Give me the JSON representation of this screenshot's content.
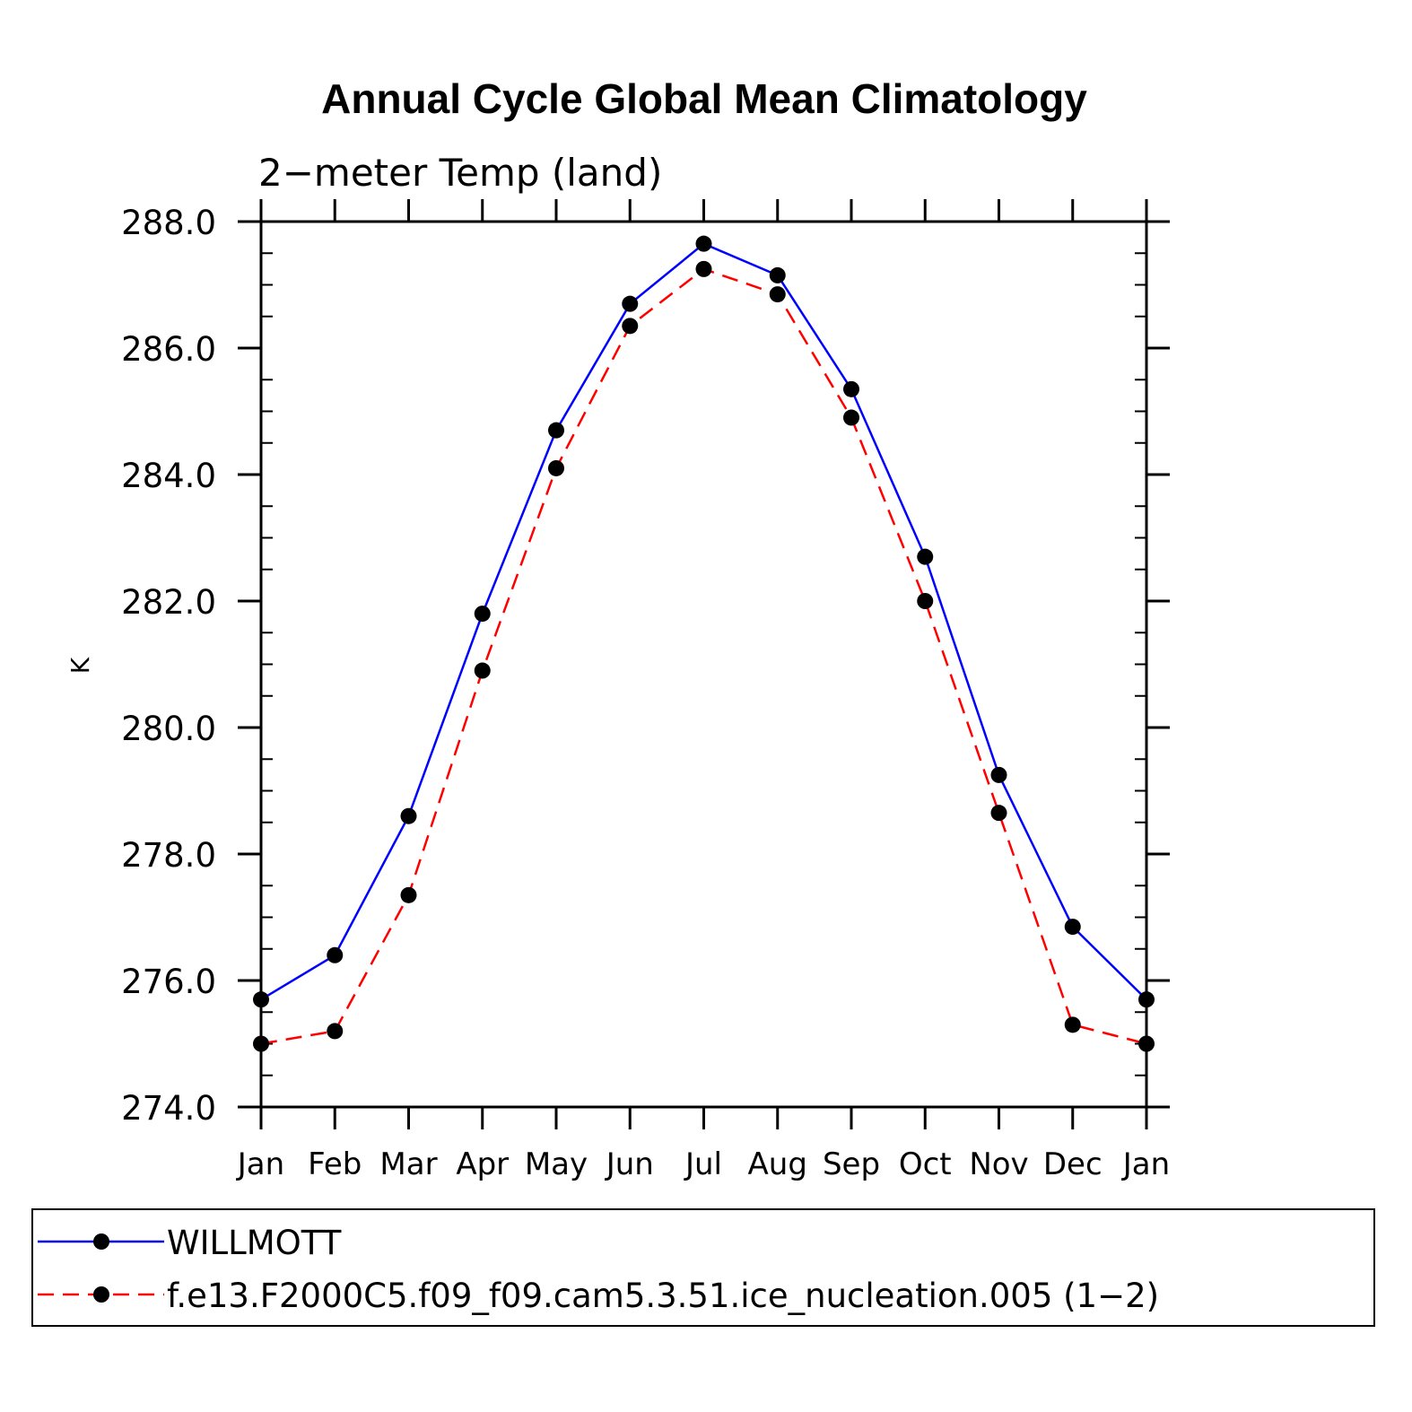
{
  "chart_data": {
    "type": "line",
    "title": "Annual Cycle Global Mean Climatology",
    "subtitle": "2−meter Temp (land)",
    "ylabel": "K",
    "xlabel": "",
    "categories": [
      "Jan",
      "Feb",
      "Mar",
      "Apr",
      "May",
      "Jun",
      "Jul",
      "Aug",
      "Sep",
      "Oct",
      "Nov",
      "Dec",
      "Jan"
    ],
    "ylim": [
      274.0,
      288.0
    ],
    "yticks": [
      "274.0",
      "276.0",
      "278.0",
      "280.0",
      "282.0",
      "284.0",
      "286.0",
      "288.0"
    ],
    "grid": false,
    "legend_position": "bottom",
    "series": [
      {
        "name": "WILLMOTT",
        "color": "#0000ff",
        "dash": "solid",
        "values": [
          275.7,
          276.4,
          278.6,
          281.8,
          284.7,
          286.7,
          287.65,
          287.15,
          285.35,
          282.7,
          279.25,
          276.85,
          275.7
        ]
      },
      {
        "name": "f.e13.F2000C5.f09_f09.cam5.3.51.ice_nucleation.005 (1−2)",
        "color": "#ff0000",
        "dash": "dashed",
        "values": [
          275.0,
          275.2,
          277.35,
          280.9,
          284.1,
          286.35,
          287.25,
          286.85,
          284.9,
          282.0,
          278.65,
          275.3,
          275.0
        ]
      }
    ]
  }
}
